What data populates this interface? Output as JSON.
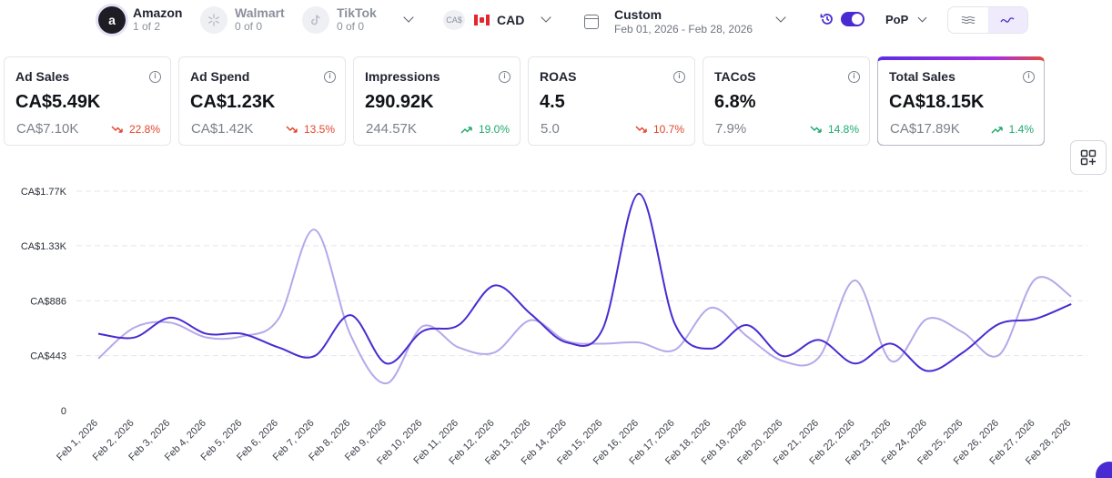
{
  "marketplaces": [
    {
      "name": "Amazon",
      "sub": "1 of 2",
      "icon": "amazon-logo-icon"
    },
    {
      "name": "Walmart",
      "sub": "0 of 0",
      "icon": "walmart-logo-icon"
    },
    {
      "name": "TikTok",
      "sub": "0 of 0",
      "icon": "tiktok-logo-icon"
    }
  ],
  "currency": {
    "badge": "CA$",
    "code": "CAD",
    "flag": "canada-flag-icon"
  },
  "date_range": {
    "label": "Custom",
    "range": "Feb 01, 2026 - Feb 28, 2026"
  },
  "compare": {
    "label": "PoP",
    "enabled": true
  },
  "colors": {
    "accent": "#4a2bd1",
    "primary_line": "#4a2bd1",
    "compare_line": "#b6a8ea",
    "down": "#e2462f",
    "up": "#1faa6b"
  },
  "metrics": [
    {
      "title": "Ad Sales",
      "value": "CA$5.49K",
      "previous": "CA$7.10K",
      "delta": "22.8%",
      "direction": "down",
      "selected": false
    },
    {
      "title": "Ad Spend",
      "value": "CA$1.23K",
      "previous": "CA$1.42K",
      "delta": "13.5%",
      "direction": "down",
      "selected": false
    },
    {
      "title": "Impressions",
      "value": "290.92K",
      "previous": "244.57K",
      "delta": "19.0%",
      "direction": "up",
      "selected": false
    },
    {
      "title": "ROAS",
      "value": "4.5",
      "previous": "5.0",
      "delta": "10.7%",
      "direction": "down",
      "selected": false
    },
    {
      "title": "TACoS",
      "value": "6.8%",
      "previous": "7.9%",
      "delta": "14.8%",
      "direction": "down",
      "selected": false
    },
    {
      "title": "Total Sales",
      "value": "CA$18.15K",
      "previous": "CA$17.89K",
      "delta": "1.4%",
      "direction": "up",
      "selected": true
    }
  ],
  "chart_data": {
    "type": "line",
    "yticks": [
      {
        "value": 0,
        "label": "0"
      },
      {
        "value": 443,
        "label": "CA$443"
      },
      {
        "value": 886,
        "label": "CA$886"
      },
      {
        "value": 1330,
        "label": "CA$1.33K"
      },
      {
        "value": 1770,
        "label": "CA$1.77K"
      }
    ],
    "ylim": [
      0,
      1770
    ],
    "grid": true,
    "x": [
      "Feb 1, 2026",
      "Feb 2, 2026",
      "Feb 3, 2026",
      "Feb 4, 2026",
      "Feb 5, 2026",
      "Feb 6, 2026",
      "Feb 7, 2026",
      "Feb 8, 2026",
      "Feb 9, 2026",
      "Feb 10, 2026",
      "Feb 11, 2026",
      "Feb 12, 2026",
      "Feb 13, 2026",
      "Feb 14, 2026",
      "Feb 15, 2026",
      "Feb 16, 2026",
      "Feb 17, 2026",
      "Feb 18, 2026",
      "Feb 19, 2026",
      "Feb 20, 2026",
      "Feb 21, 2026",
      "Feb 22, 2026",
      "Feb 23, 2026",
      "Feb 24, 2026",
      "Feb 25, 2026",
      "Feb 26, 2026",
      "Feb 27, 2026",
      "Feb 28, 2026"
    ],
    "series": [
      {
        "role": "current",
        "values": [
          620,
          590,
          750,
          620,
          620,
          510,
          440,
          770,
          380,
          640,
          690,
          1010,
          780,
          550,
          660,
          1750,
          700,
          500,
          690,
          440,
          570,
          380,
          540,
          320,
          470,
          700,
          740,
          860
        ]
      },
      {
        "role": "previous",
        "values": [
          420,
          670,
          710,
          590,
          600,
          740,
          1460,
          610,
          220,
          680,
          510,
          470,
          730,
          560,
          540,
          550,
          490,
          830,
          600,
          400,
          430,
          1050,
          400,
          740,
          630,
          450,
          1060,
          920
        ]
      }
    ]
  }
}
